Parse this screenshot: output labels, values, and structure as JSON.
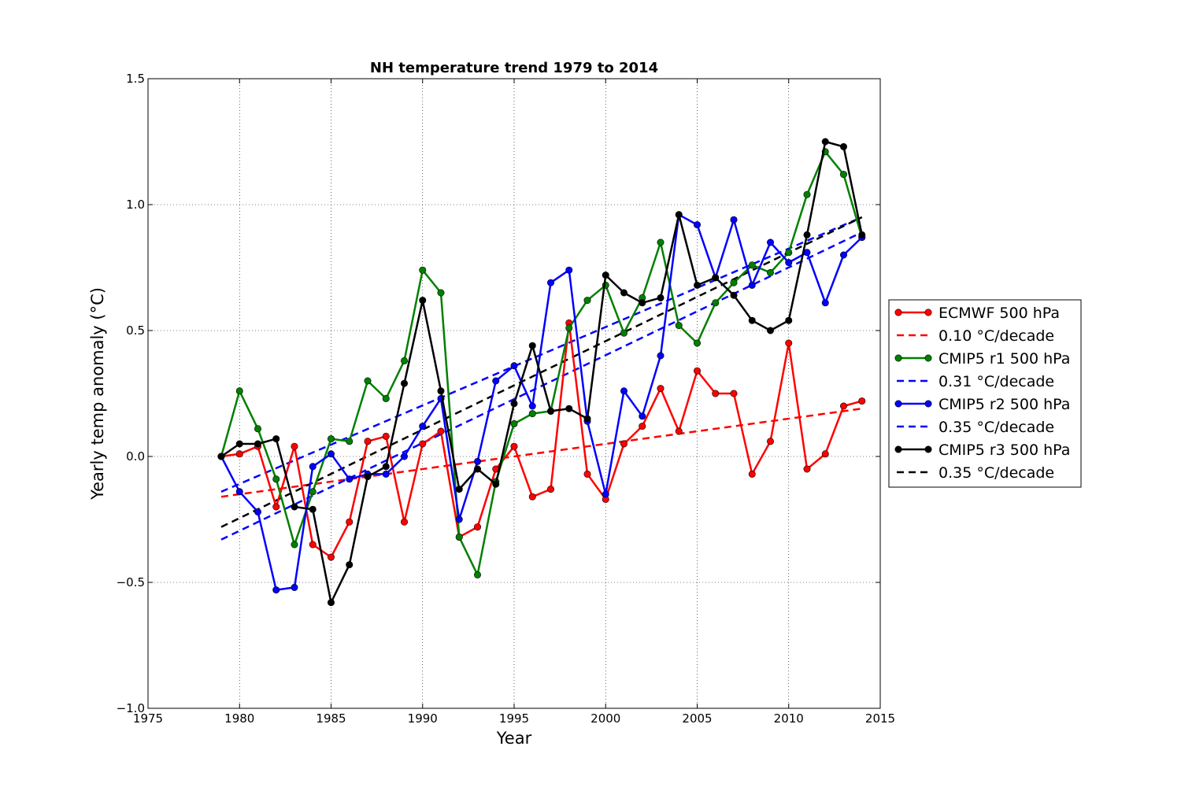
{
  "chart_data": {
    "type": "line",
    "title": "NH temperature trend 1979 to 2014",
    "xlabel": "Year",
    "ylabel": "Yearly temp anomaly (°C)",
    "xlim": [
      1975,
      2015
    ],
    "ylim": [
      -1.0,
      1.5
    ],
    "xticks": [
      1975,
      1980,
      1985,
      1990,
      1995,
      2000,
      2005,
      2010,
      2015
    ],
    "xtick_labels": [
      "1975",
      "1980",
      "1985",
      "1990",
      "1995",
      "2000",
      "2005",
      "2010",
      "2015"
    ],
    "yticks": [
      -1.0,
      -0.5,
      0.0,
      0.5,
      1.0,
      1.5
    ],
    "ytick_labels": [
      "−1.0",
      "−0.5",
      "0.0",
      "0.5",
      "1.0",
      "1.5"
    ],
    "grid": true,
    "legend_position": "outside-right",
    "x": [
      1979,
      1980,
      1981,
      1982,
      1983,
      1984,
      1985,
      1986,
      1987,
      1988,
      1989,
      1990,
      1991,
      1992,
      1993,
      1994,
      1995,
      1996,
      1997,
      1998,
      1999,
      2000,
      2001,
      2002,
      2003,
      2004,
      2005,
      2006,
      2007,
      2008,
      2009,
      2010,
      2011,
      2012,
      2013,
      2014
    ],
    "series": [
      {
        "name": "ECMWF 500 hPa",
        "color": "#ff0000",
        "values": [
          0.0,
          0.01,
          0.04,
          -0.2,
          0.04,
          -0.35,
          -0.4,
          -0.26,
          0.06,
          0.08,
          -0.26,
          0.05,
          0.1,
          -0.32,
          -0.28,
          -0.05,
          0.04,
          -0.16,
          -0.13,
          0.53,
          -0.07,
          -0.17,
          0.05,
          0.12,
          0.27,
          0.1,
          0.34,
          0.25,
          0.25,
          -0.07,
          0.06,
          0.45,
          -0.05,
          0.01,
          0.2,
          0.22
        ]
      },
      {
        "name": "CMIP5 r1 500 hPa",
        "color": "#008000",
        "values": [
          0.0,
          0.26,
          0.11,
          -0.09,
          -0.35,
          -0.14,
          0.07,
          0.06,
          0.3,
          0.23,
          0.38,
          0.74,
          0.65,
          -0.32,
          -0.47,
          -0.1,
          0.13,
          0.17,
          0.18,
          0.51,
          0.62,
          0.68,
          0.49,
          0.63,
          0.85,
          0.52,
          0.45,
          0.61,
          0.69,
          0.76,
          0.73,
          0.81,
          1.04,
          1.21,
          1.12,
          0.87
        ]
      },
      {
        "name": "CMIP5 r2 500 hPa",
        "color": "#0000ff",
        "values": [
          0.0,
          -0.14,
          -0.22,
          -0.53,
          -0.52,
          -0.04,
          0.01,
          -0.09,
          -0.07,
          -0.07,
          0.0,
          0.12,
          0.23,
          -0.25,
          -0.02,
          0.3,
          0.36,
          0.2,
          0.69,
          0.74,
          0.14,
          -0.15,
          0.26,
          0.16,
          0.4,
          0.96,
          0.92,
          0.71,
          0.94,
          0.68,
          0.85,
          0.77,
          0.81,
          0.61,
          0.8,
          0.87
        ]
      },
      {
        "name": "CMIP5 r3 500 hPa",
        "color": "#000000",
        "values": [
          0.0,
          0.05,
          0.05,
          0.07,
          -0.2,
          -0.21,
          -0.58,
          -0.43,
          -0.08,
          -0.04,
          0.29,
          0.62,
          0.26,
          -0.13,
          -0.05,
          -0.11,
          0.21,
          0.44,
          0.18,
          0.19,
          0.15,
          0.72,
          0.65,
          0.61,
          0.63,
          0.96,
          0.68,
          0.71,
          0.64,
          0.54,
          0.5,
          0.54,
          0.88,
          1.25,
          1.23,
          0.88
        ]
      }
    ],
    "trends": [
      {
        "name": "0.10 °C/decade",
        "color": "#ff0000",
        "x": [
          1979,
          2014
        ],
        "y": [
          -0.16,
          0.19
        ]
      },
      {
        "name": "0.31 °C/decade",
        "color": "#0000ff",
        "x": [
          1979,
          2014
        ],
        "y": [
          -0.14,
          0.95
        ]
      },
      {
        "name": "0.35 °C/decade",
        "color": "#0000ff",
        "x": [
          1979,
          2014
        ],
        "y": [
          -0.33,
          0.89
        ]
      },
      {
        "name": "0.35 °C/decade",
        "color": "#000000",
        "x": [
          1979,
          2014
        ],
        "y": [
          -0.28,
          0.95
        ]
      }
    ],
    "legend": [
      {
        "label": "ECMWF 500 hPa",
        "color": "#ff0000",
        "style": "line-marker"
      },
      {
        "label": "0.10 °C/decade",
        "color": "#ff0000",
        "style": "dashed"
      },
      {
        "label": "CMIP5 r1 500 hPa",
        "color": "#008000",
        "style": "line-marker"
      },
      {
        "label": "0.31 °C/decade",
        "color": "#0000ff",
        "style": "dashed"
      },
      {
        "label": "CMIP5 r2 500 hPa",
        "color": "#0000ff",
        "style": "line-marker"
      },
      {
        "label": "0.35 °C/decade",
        "color": "#0000ff",
        "style": "dashed"
      },
      {
        "label": "CMIP5 r3 500 hPa",
        "color": "#000000",
        "style": "line-marker"
      },
      {
        "label": "0.35 °C/decade",
        "color": "#000000",
        "style": "dashed"
      }
    ]
  }
}
